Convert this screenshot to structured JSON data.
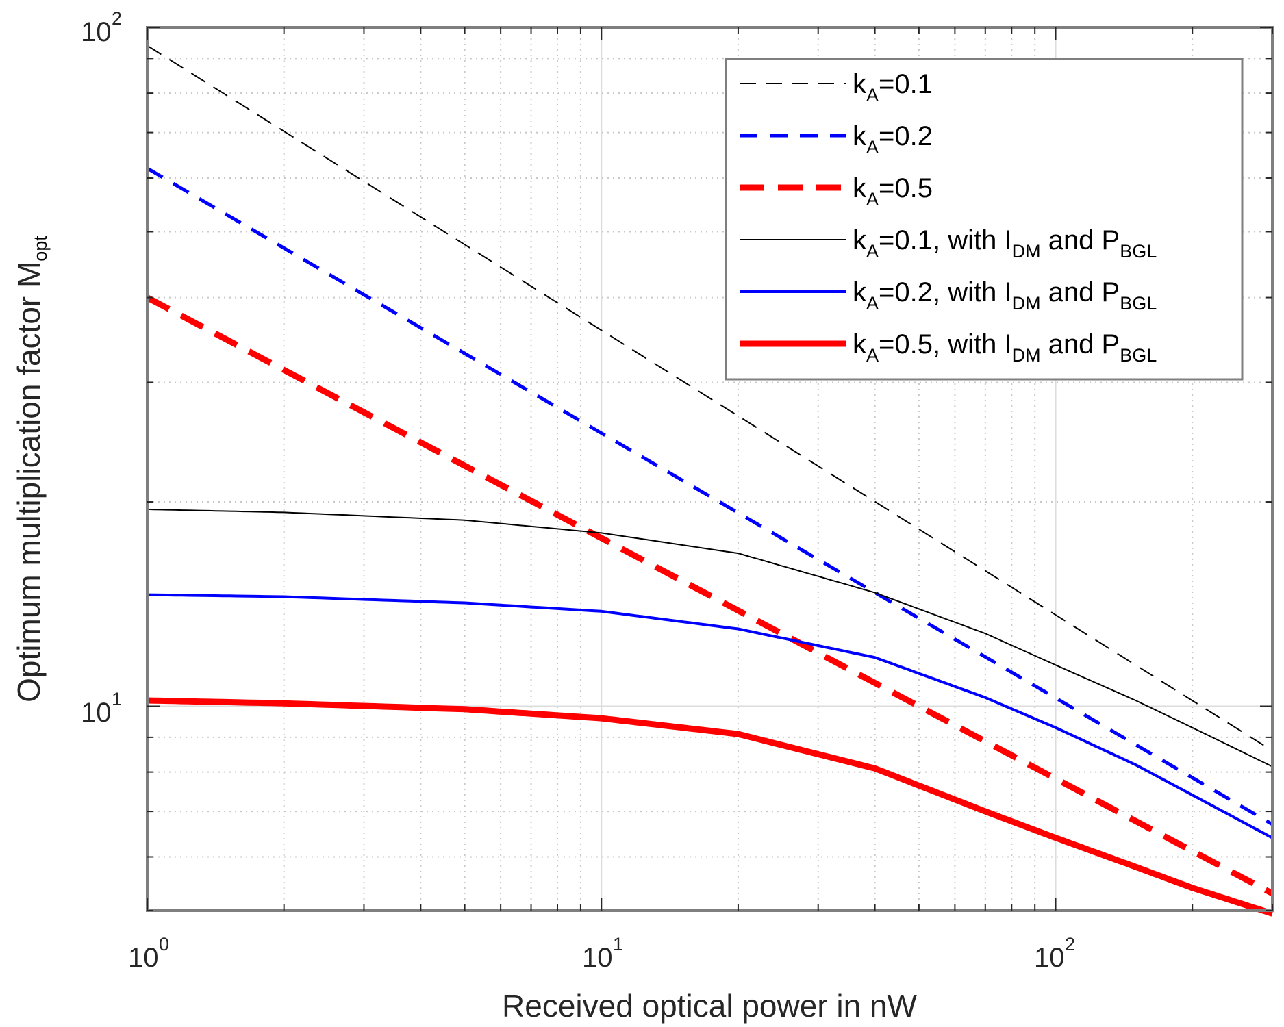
{
  "chart_data": {
    "type": "line",
    "x_scale": "log",
    "y_scale": "log",
    "xlim": [
      1,
      300
    ],
    "ylim": [
      5,
      100
    ],
    "grid": true,
    "legend_position": "top-right",
    "xlabel": "Received optical power in nW",
    "ylabel": {
      "main": "Optimum multiplication factor M",
      "sub": "opt"
    },
    "x_ticks": [
      {
        "value": 1,
        "base": "10",
        "exp": "0"
      },
      {
        "value": 10,
        "base": "10",
        "exp": "1"
      },
      {
        "value": 100,
        "base": "10",
        "exp": "2"
      }
    ],
    "y_ticks": [
      {
        "value": 10,
        "base": "10",
        "exp": "1"
      },
      {
        "value": 100,
        "base": "10",
        "exp": "2"
      }
    ],
    "series": [
      {
        "name": "kA=0.1",
        "legend": {
          "pre": "k",
          "sub": "A",
          "post": "=0.1"
        },
        "color": "#000000",
        "style": "dashed",
        "width": 2,
        "x": [
          1,
          300
        ],
        "y": [
          94,
          8.6
        ]
      },
      {
        "name": "kA=0.2",
        "legend": {
          "pre": "k",
          "sub": "A",
          "post": "=0.2"
        },
        "color": "#0000ff",
        "style": "dashed",
        "width": 5,
        "x": [
          1,
          300
        ],
        "y": [
          62,
          6.7
        ]
      },
      {
        "name": "kA=0.5",
        "legend": {
          "pre": "k",
          "sub": "A",
          "post": "=0.5"
        },
        "color": "#ff0000",
        "style": "dashed",
        "width": 9,
        "x": [
          1,
          300
        ],
        "y": [
          40,
          5.3
        ]
      },
      {
        "name": "kA=0.1, with IDM and PBGL",
        "legend": {
          "pre": "k",
          "sub": "A",
          "post": "=0.1, with I",
          "sub2": "DM",
          "mid": " and P",
          "sub3": "BGL"
        },
        "color": "#000000",
        "style": "solid",
        "width": 2,
        "x": [
          1,
          2,
          5,
          10,
          20,
          40,
          70,
          100,
          150,
          200,
          300
        ],
        "y": [
          19.5,
          19.3,
          18.8,
          18.0,
          16.8,
          14.7,
          12.8,
          11.5,
          10.2,
          9.3,
          8.15
        ]
      },
      {
        "name": "kA=0.2, with IDM and PBGL",
        "legend": {
          "pre": "k",
          "sub": "A",
          "post": "=0.2, with I",
          "sub2": "DM",
          "mid": " and P",
          "sub3": "BGL"
        },
        "color": "#0000ff",
        "style": "solid",
        "width": 4,
        "x": [
          1,
          2,
          5,
          10,
          20,
          40,
          70,
          100,
          150,
          200,
          300
        ],
        "y": [
          14.6,
          14.5,
          14.2,
          13.8,
          13.0,
          11.8,
          10.3,
          9.3,
          8.2,
          7.4,
          6.4
        ]
      },
      {
        "name": "kA=0.5, with IDM and PBGL",
        "legend": {
          "pre": "k",
          "sub": "A",
          "post": "=0.5, with I",
          "sub2": "DM",
          "mid": " and P",
          "sub3": "BGL"
        },
        "color": "#ff0000",
        "style": "solid",
        "width": 9,
        "x": [
          1,
          2,
          5,
          10,
          20,
          40,
          70,
          100,
          150,
          200,
          300
        ],
        "y": [
          10.2,
          10.1,
          9.9,
          9.6,
          9.1,
          8.1,
          7.0,
          6.4,
          5.8,
          5.4,
          4.95
        ]
      }
    ]
  }
}
